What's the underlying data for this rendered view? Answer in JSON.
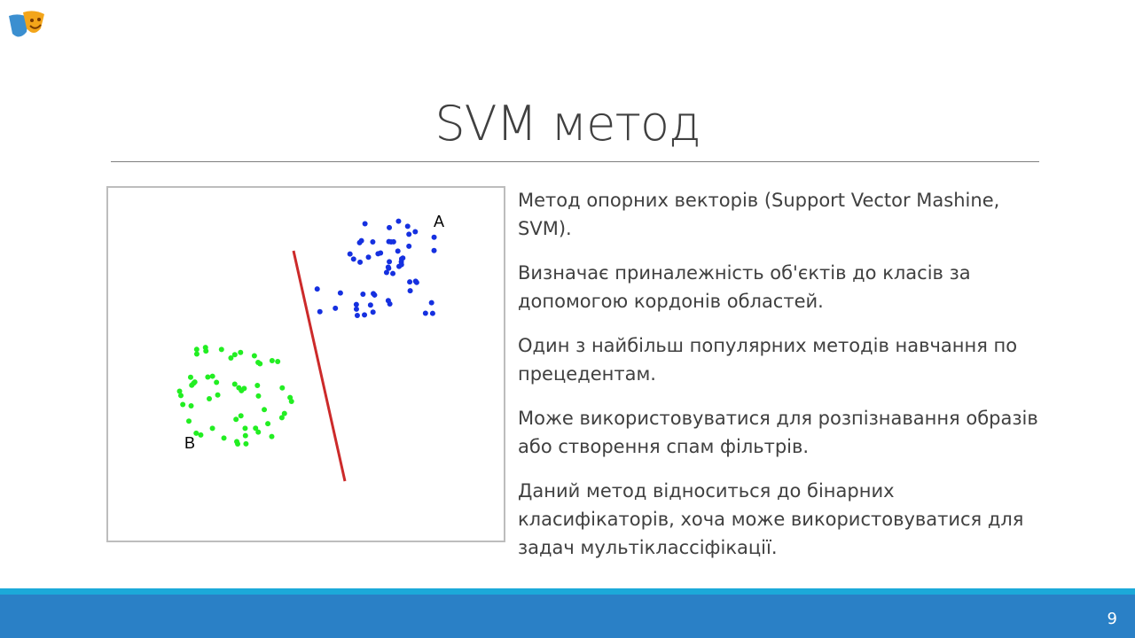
{
  "slide": {
    "title": "SVM метод",
    "figure": {
      "label_a": "A",
      "label_b": "B"
    },
    "paragraphs": [
      "Метод опорних векторів (Support Vector Mashine, SVM).",
      "Визначає приналежність об'єктів до класів за допомогою кордонів областей.",
      "Один з найбільш популярних методів навчання по прецедентам.",
      "Може використовуватися для розпізнавання образів або створення спам фільтрів.",
      "Даний метод відноситься до бінарних класифікаторів, хоча може використовуватися для задач мультіклассіфікації."
    ],
    "page_number": "9"
  }
}
